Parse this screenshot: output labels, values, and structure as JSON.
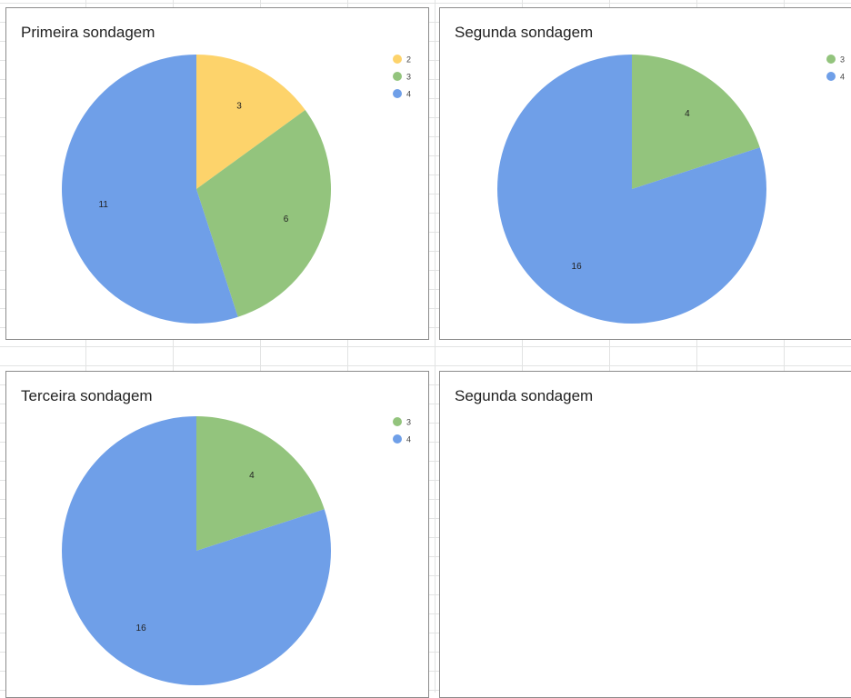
{
  "colors": {
    "2": "#fdd36b",
    "3": "#93c47d",
    "4": "#6f9fe8"
  },
  "chart_data": [
    {
      "type": "pie",
      "title": "Primeira sondagem",
      "categories": [
        "2",
        "3",
        "4"
      ],
      "values": [
        3,
        6,
        11
      ],
      "legend": "top-right"
    },
    {
      "type": "pie",
      "title": "Segunda sondagem",
      "categories": [
        "3",
        "4"
      ],
      "values": [
        4,
        16
      ],
      "legend": "top-right"
    },
    {
      "type": "pie",
      "title": "Terceira sondagem",
      "categories": [
        "3",
        "4"
      ],
      "values": [
        4,
        16
      ],
      "legend": "top-right"
    },
    {
      "type": "pie",
      "title": "Segunda sondagem",
      "categories": [],
      "values": []
    }
  ]
}
